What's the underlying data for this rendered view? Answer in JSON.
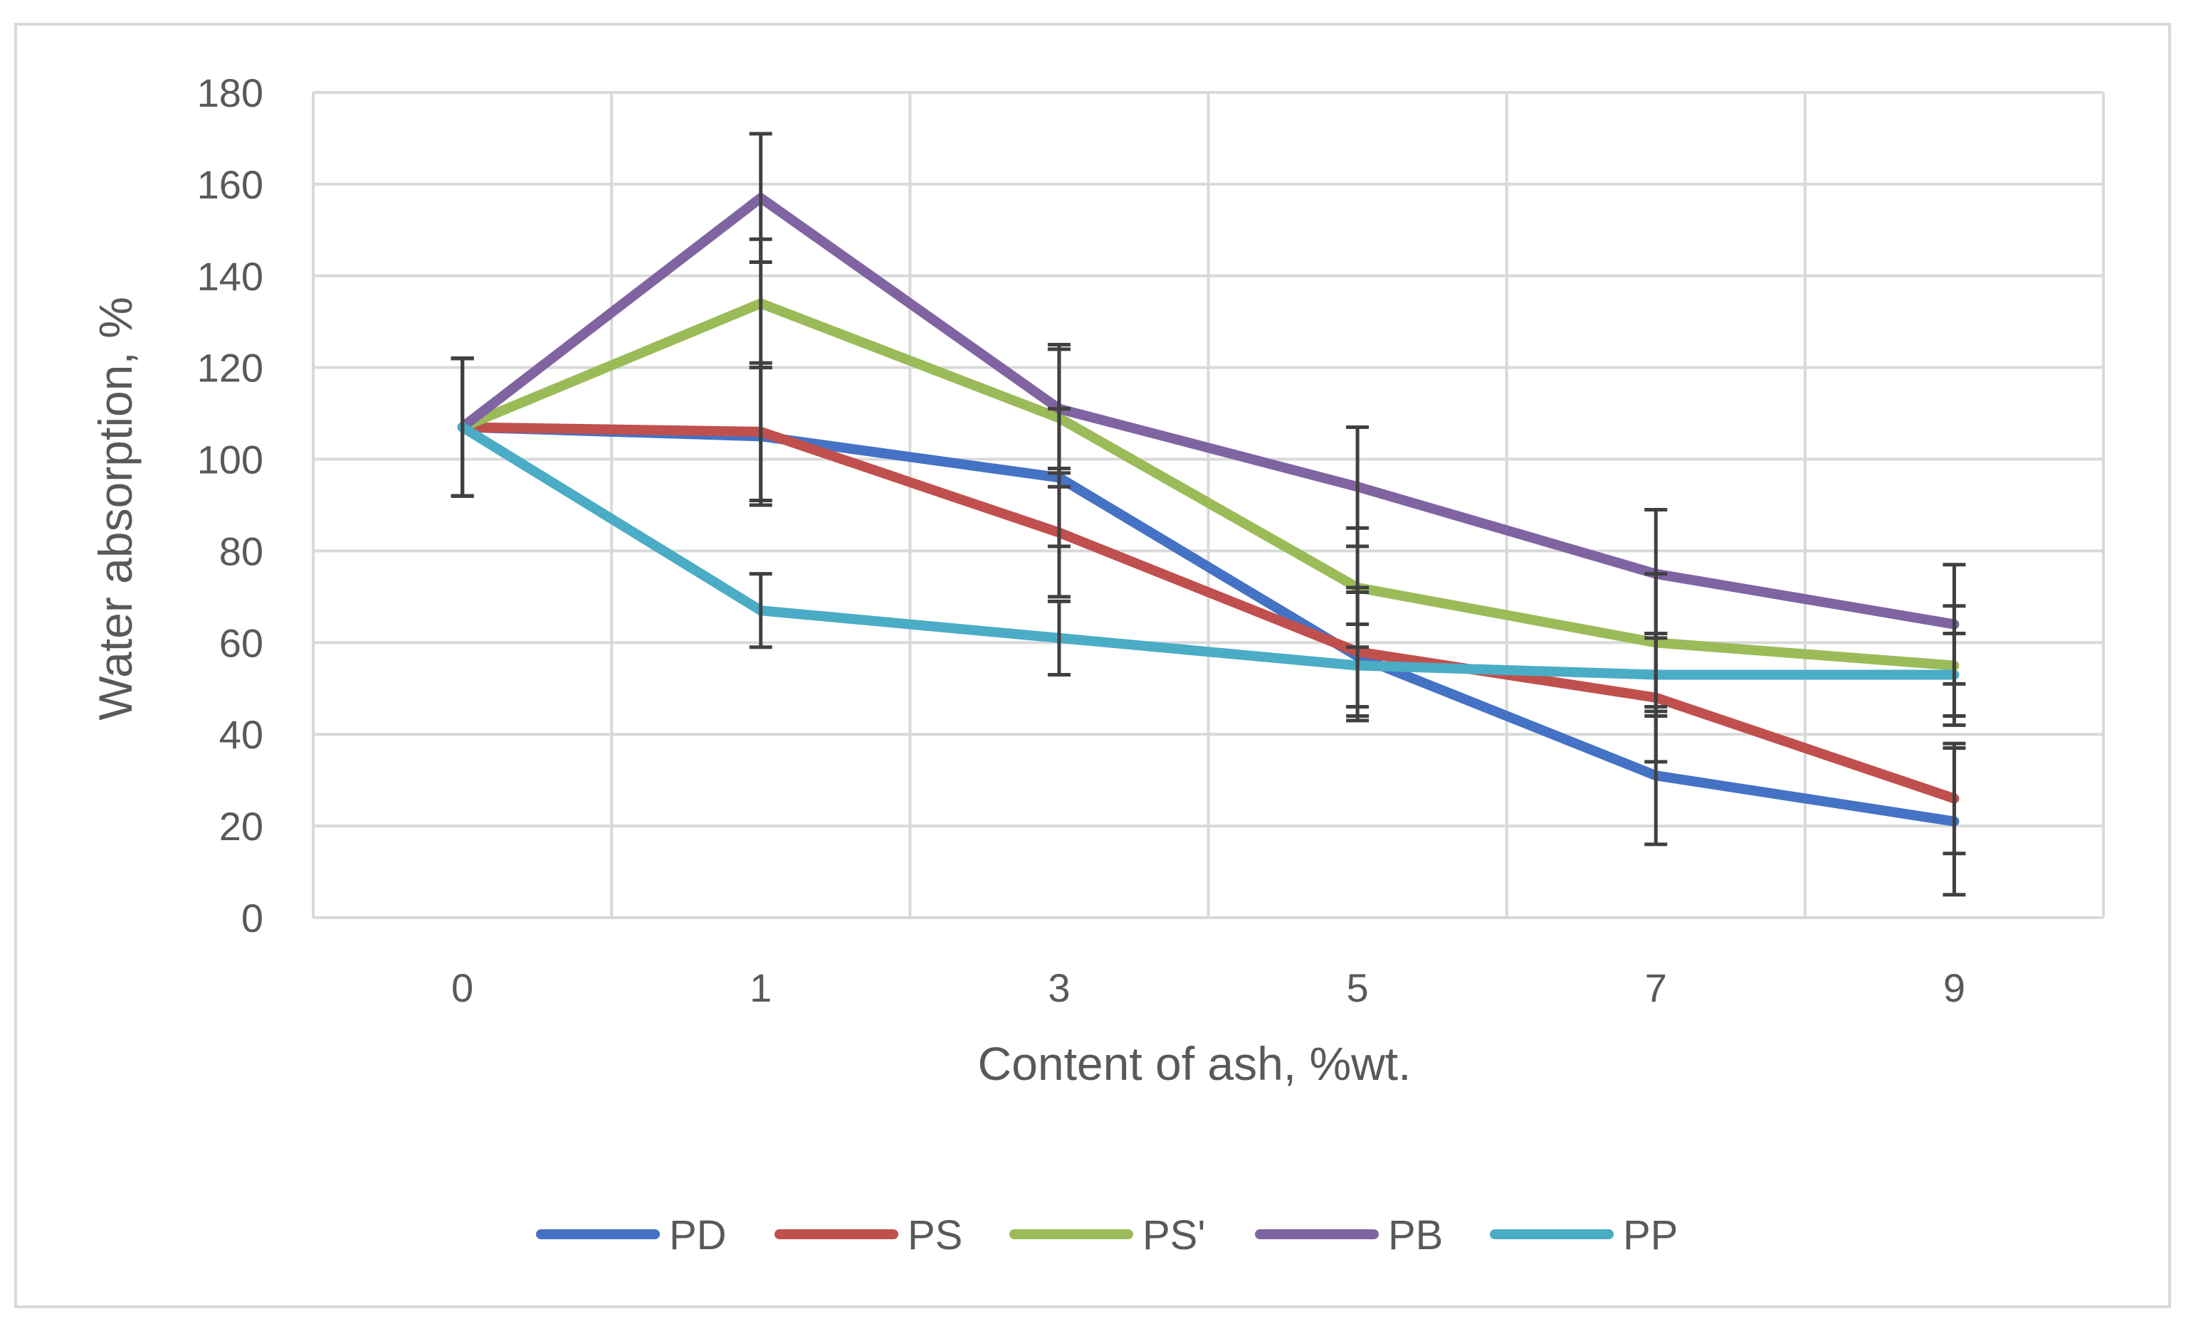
{
  "chart_data": {
    "type": "line",
    "title": "",
    "xlabel": "Content of ash, %wt.",
    "ylabel": "Water absorption, %",
    "categories": [
      "0",
      "1",
      "3",
      "5",
      "7",
      "9"
    ],
    "ylim": [
      0,
      180
    ],
    "yticks": [
      0,
      20,
      40,
      60,
      80,
      100,
      120,
      140,
      160,
      180
    ],
    "ytick_labels": [
      "0",
      "20",
      "40",
      "60",
      "80",
      "100",
      "120",
      "140",
      "160",
      "180"
    ],
    "grid": true,
    "legend_position": "bottom",
    "series": [
      {
        "name": "PD",
        "color": "#4472C4",
        "values": [
          107,
          105,
          96,
          57,
          31,
          21
        ],
        "errors": [
          15,
          15,
          15,
          14,
          15,
          16
        ]
      },
      {
        "name": "PS",
        "color": "#C0504D",
        "values": [
          107,
          106,
          84,
          58,
          48,
          26
        ],
        "errors": [
          15,
          15,
          14,
          14,
          14,
          12
        ]
      },
      {
        "name": "PS'",
        "color": "#9BBB59",
        "values": [
          107,
          134,
          109,
          72,
          60,
          55
        ],
        "errors": [
          15,
          14,
          15,
          13,
          15,
          13
        ]
      },
      {
        "name": "PB",
        "color": "#8064A2",
        "values": [
          107,
          157,
          111,
          94,
          75,
          64
        ],
        "errors": [
          15,
          14,
          14,
          13,
          14,
          13
        ]
      },
      {
        "name": "PP",
        "color": "#4BACC6",
        "values": [
          107,
          67,
          61,
          55,
          53,
          53
        ],
        "errors": [
          15,
          8,
          8,
          9,
          9,
          9
        ]
      }
    ]
  }
}
